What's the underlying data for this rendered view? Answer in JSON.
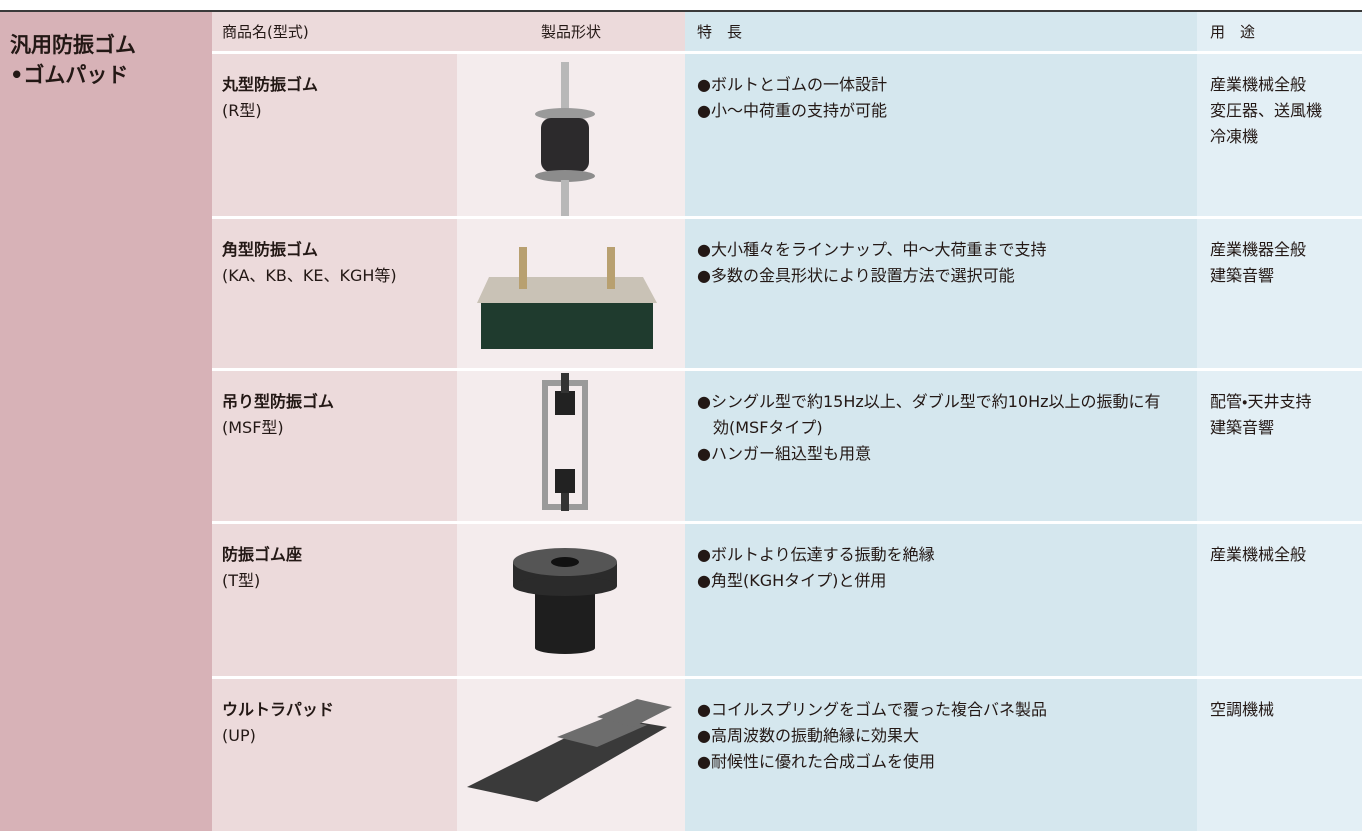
{
  "category": [
    "汎用防振ゴム",
    "•ゴムパッド"
  ],
  "header": [
    "商品名(型式)",
    "製品形状",
    "特　長",
    "用　途"
  ],
  "rows": [
    {
      "name": "丸型防振ゴム",
      "model": "(R型)",
      "features": [
        "●ボルトとゴムの一体設計",
        "●小～中荷重の支持が可能"
      ],
      "uses": [
        "産業機械全般",
        "変圧器、送風機",
        "冷凍機"
      ]
    },
    {
      "name": "角型防振ゴム",
      "model": "(KA、KB、KE、KGH等)",
      "features": [
        "●大小種々をラインナップ、中～大荷重まで支持",
        "●多数の金具形状により設置方法で選択可能"
      ],
      "uses": [
        "産業機器全般",
        "建築音響"
      ]
    },
    {
      "name": "吊り型防振ゴム",
      "model": "(MSF型)",
      "features": [
        "●シングル型で約15Hz以上、ダブル型で約10Hz以上の振動に有効(MSFタイプ)",
        "●ハンガー組込型も用意"
      ],
      "uses": [
        "配管・天井支持",
        "建築音響"
      ]
    },
    {
      "name": "防振ゴム座",
      "model": "(T型)",
      "features": [
        "●ボルトより伝達する振動を絶縁",
        "●角型(KGHタイプ)と併用"
      ],
      "uses": [
        "産業機械全般"
      ]
    },
    {
      "name": "ウルトラパッド",
      "model": "(UP)",
      "features": [
        "●コイルスプリングをゴムで覆った複合バネ製品",
        "●高周波数の振動絶縁に効果大",
        "●耐候性に優れた合成ゴムを使用"
      ],
      "uses": [
        "空調機械"
      ]
    }
  ]
}
